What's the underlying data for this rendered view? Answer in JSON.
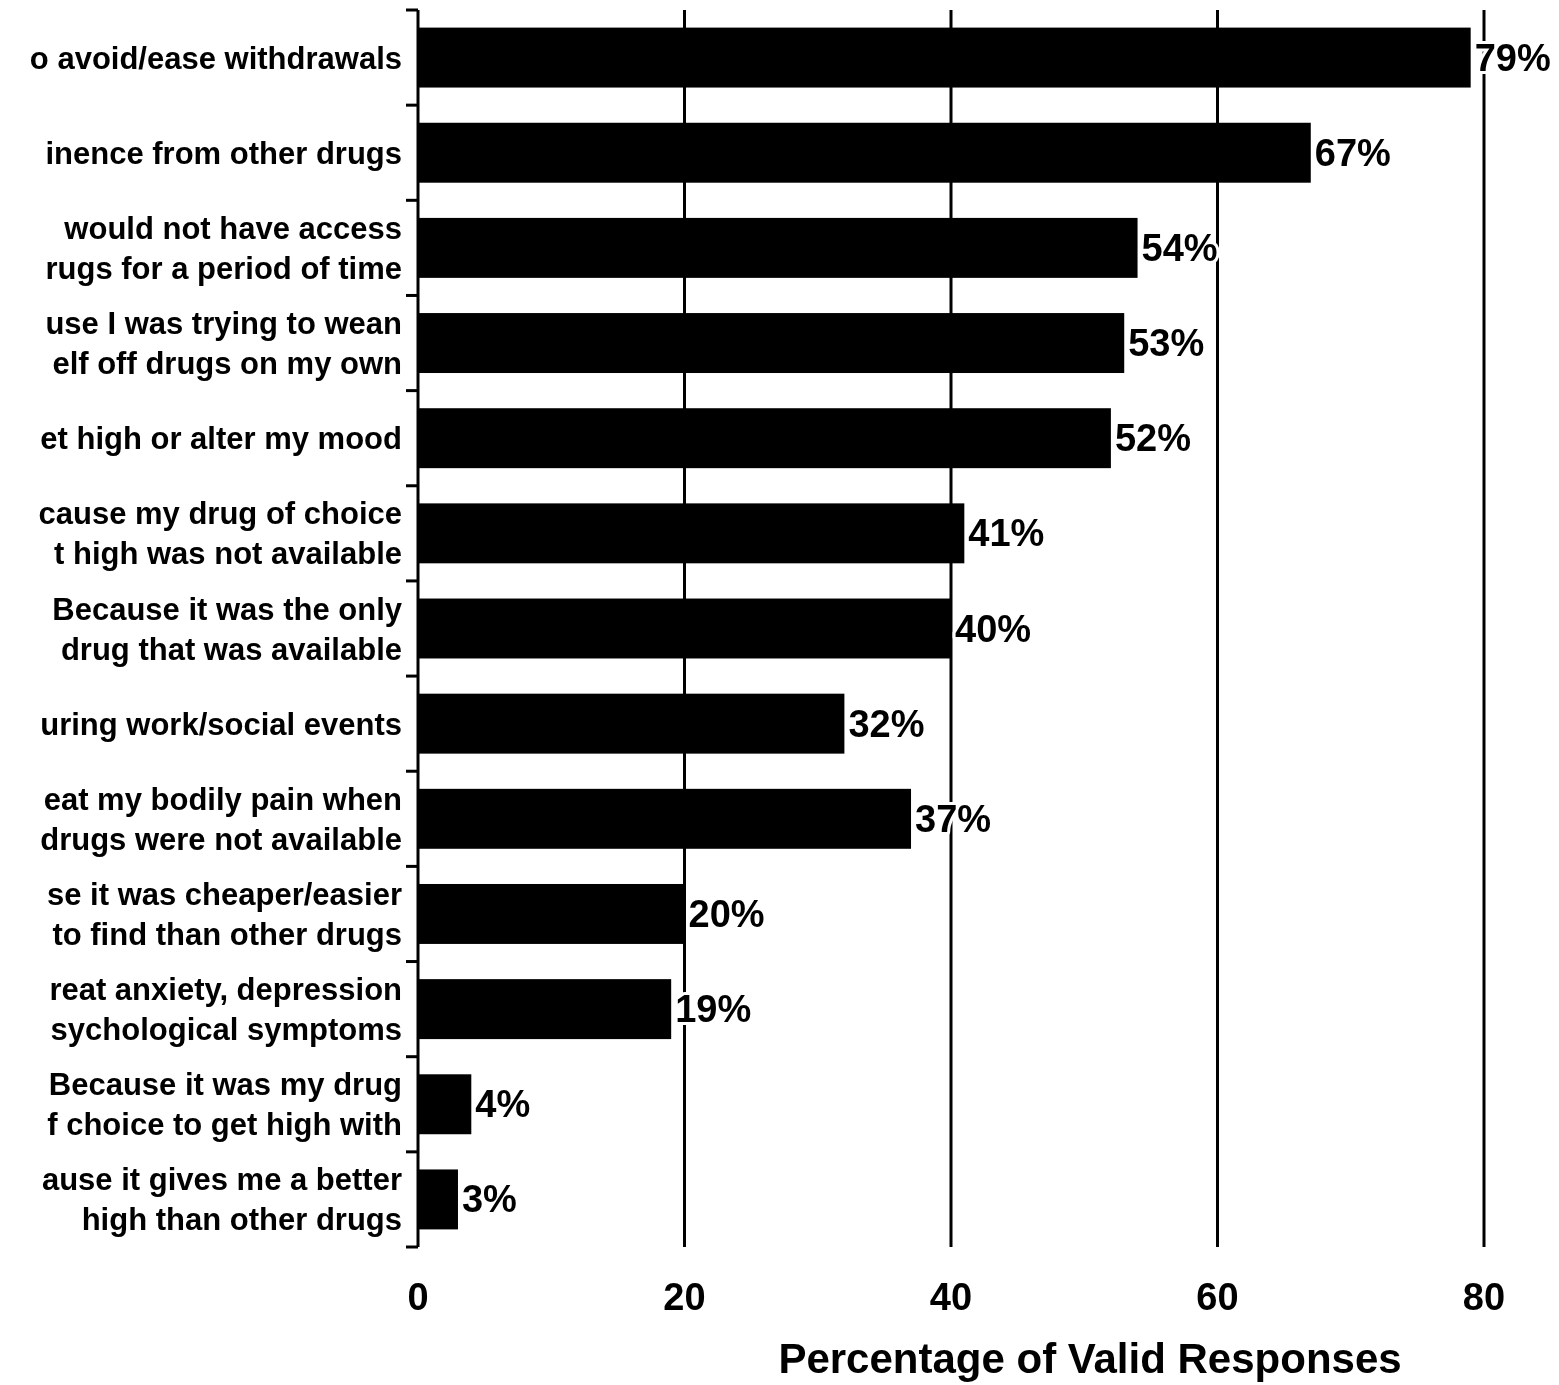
{
  "chart_data": {
    "type": "bar",
    "orientation": "horizontal",
    "xlabel": "Percentage of Valid Responses",
    "categories": [
      "o avoid/ease withdrawals",
      "inence from other drugs",
      "would not have access\nrugs for a period of time",
      "use I was trying to wean\nelf off drugs on my own",
      "et high or alter my mood",
      "cause my drug of choice\nt high was not available",
      "Because it was the only\ndrug that was available",
      "uring work/social events",
      "eat my bodily pain when\ndrugs were not available",
      "se it was cheaper/easier\nto find than other drugs",
      "reat anxiety, depression\nsychological symptoms",
      "Because it was my drug\nf choice to get high with",
      "ause it gives me a better\nhigh than other drugs"
    ],
    "values": [
      79,
      67,
      54,
      53,
      52,
      41,
      40,
      32,
      37,
      20,
      19,
      4,
      3
    ],
    "value_labels": [
      "79%",
      "67%",
      "54%",
      "53%",
      "52%",
      "41%",
      "40%",
      "32%",
      "37%",
      "20%",
      "19%",
      "4%",
      "3%"
    ],
    "color": "#000000",
    "xlim": [
      0,
      80
    ],
    "xticks": [
      0,
      20,
      40,
      60,
      80
    ],
    "grid": "x"
  }
}
